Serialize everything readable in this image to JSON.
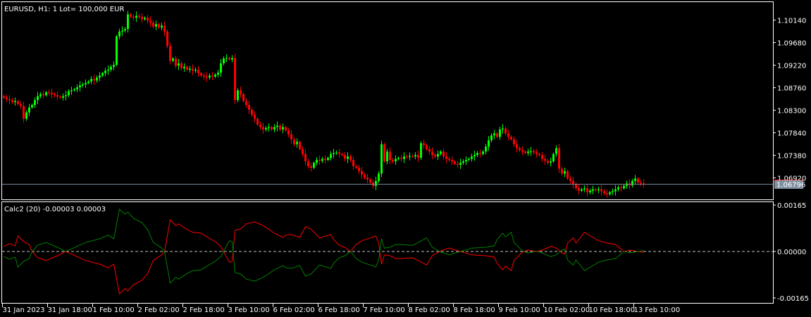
{
  "window": {
    "symbol_label": "EURUSD, H1:  1 Lot= 100,000 EUR"
  },
  "colors": {
    "bull": "#00ff00",
    "bear": "#ff0000",
    "background": "#000000",
    "grid_text": "#ffffff",
    "bid_line": "#778899",
    "ask_line": "#ff0000",
    "indicator_red": "#ff0000",
    "indicator_green": "#008000",
    "zero_line": "#c0c0c0"
  },
  "price_axis": {
    "ticks": [
      "1.10140",
      "1.09680",
      "1.09220",
      "1.08760",
      "1.08300",
      "1.07840",
      "1.07380",
      "1.06920"
    ],
    "current_price": "1.06796"
  },
  "time_axis": {
    "labels": [
      "31 Jan 2023",
      "31 Jan 18:00",
      "1 Feb 10:00",
      "2 Feb 02:00",
      "2 Feb 18:00",
      "3 Feb 10:00",
      "6 Feb 02:00",
      "6 Feb 18:00",
      "7 Feb 10:00",
      "8 Feb 02:00",
      "8 Feb 18:00",
      "9 Feb 10:00",
      "10 Feb 02:00",
      "10 Feb 18:00",
      "13 Feb 10:00"
    ],
    "bars_per_label": 16
  },
  "indicator": {
    "label": "Calc2 (20) -0.00003 0.00003",
    "axis_ticks": [
      "0.00165",
      "0.00000",
      "-0.00165"
    ],
    "zero_level": "0.00000"
  },
  "chart_data": [
    {
      "type": "candlestick",
      "symbol": "EURUSD",
      "timeframe": "H1",
      "ylim": [
        1.0647,
        1.1056
      ],
      "first_open": 1.0858,
      "closes": [
        1.0855,
        1.0852,
        1.085,
        1.0846,
        1.0848,
        1.0842,
        1.0838,
        1.0812,
        1.0825,
        1.0835,
        1.084,
        1.085,
        1.0858,
        1.0862,
        1.086,
        1.0866,
        1.0865,
        1.0862,
        1.086,
        1.0857,
        1.0855,
        1.0858,
        1.086,
        1.0868,
        1.087,
        1.0872,
        1.0876,
        1.088,
        1.0882,
        1.0885,
        1.0888,
        1.0893,
        1.089,
        1.0896,
        1.09,
        1.0905,
        1.091,
        1.0912,
        1.0918,
        1.0922,
        1.098,
        1.099,
        1.0992,
        1.0995,
        1.1025,
        1.102,
        1.1018,
        1.1022,
        1.102,
        1.1015,
        1.1018,
        1.1012,
        1.1008,
        1.1,
        1.1005,
        1.0998,
        1.1002,
        1.099,
        1.096,
        1.093,
        1.0935,
        1.092,
        1.0925,
        1.0915,
        1.0918,
        1.0912,
        1.0914,
        1.091,
        1.0912,
        1.0905,
        1.09,
        1.0898,
        1.0896,
        1.09,
        1.0898,
        1.0902,
        1.0906,
        1.0925,
        1.0935,
        1.0936,
        1.0933,
        1.0936,
        1.085,
        1.087,
        1.0862,
        1.0848,
        1.084,
        1.083,
        1.082,
        1.0812,
        1.08,
        1.0795,
        1.079,
        1.0793,
        1.0795,
        1.079,
        1.0795,
        1.0798,
        1.079,
        1.0795,
        1.0788,
        1.078,
        1.077,
        1.076,
        1.0765,
        1.075,
        1.074,
        1.0725,
        1.0715,
        1.0712,
        1.0722,
        1.0728,
        1.0726,
        1.073,
        1.0728,
        1.0732,
        1.074,
        1.0742,
        1.0743,
        1.074,
        1.0738,
        1.073,
        1.0735,
        1.0728,
        1.0715,
        1.0712,
        1.0705,
        1.0698,
        1.0692,
        1.0688,
        1.0682,
        1.0675,
        1.0685,
        1.07,
        1.076,
        1.0725,
        1.0745,
        1.0728,
        1.0725,
        1.073,
        1.0732,
        1.073,
        1.0735,
        1.0734,
        1.0736,
        1.0735,
        1.0738,
        1.0732,
        1.0762,
        1.0758,
        1.075,
        1.0745,
        1.0738,
        1.0735,
        1.074,
        1.0745,
        1.0735,
        1.073,
        1.0728,
        1.0725,
        1.072,
        1.0718,
        1.0722,
        1.0725,
        1.0728,
        1.073,
        1.0735,
        1.0738,
        1.0742,
        1.074,
        1.0745,
        1.0755,
        1.0768,
        1.0778,
        1.0782,
        1.0775,
        1.079,
        1.0792,
        1.0782,
        1.0775,
        1.077,
        1.076,
        1.0752,
        1.0748,
        1.0745,
        1.0742,
        1.0745,
        1.0746,
        1.0743,
        1.074,
        1.0738,
        1.073,
        1.0726,
        1.0722,
        1.0725,
        1.074,
        1.0752,
        1.071,
        1.07,
        1.0705,
        1.069,
        1.0685,
        1.0678,
        1.067,
        1.0665,
        1.0668,
        1.067,
        1.0662,
        1.0665,
        1.0668,
        1.0666,
        1.0668,
        1.0664,
        1.066,
        1.0658,
        1.0662,
        1.0664,
        1.0668,
        1.0672,
        1.067,
        1.0675,
        1.068,
        1.0676,
        1.0685,
        1.069,
        1.0682,
        1.068,
        1.06796
      ]
    },
    {
      "type": "line",
      "title": "Calc2 (20)",
      "ylim": [
        -0.00165,
        0.00165
      ],
      "bars": [
        0,
        2,
        4,
        5,
        7,
        9,
        10,
        12,
        15,
        19,
        22,
        29,
        34,
        37,
        39,
        41,
        43,
        44,
        46,
        49,
        51,
        53,
        56,
        57,
        59,
        61,
        62,
        65,
        67,
        70,
        72,
        75,
        77,
        79,
        80,
        81,
        82,
        84,
        86,
        89,
        92,
        96,
        99,
        100,
        102,
        105,
        107,
        109,
        112,
        116,
        117,
        119,
        121,
        123,
        125,
        127,
        130,
        132,
        133,
        134,
        135,
        137,
        139,
        141,
        145,
        147,
        150,
        152,
        155,
        158,
        162,
        166,
        171,
        174,
        175,
        177,
        178,
        180,
        181,
        184,
        186,
        189,
        191,
        194,
        196,
        198,
        199,
        200,
        202,
        203,
        206,
        209,
        211,
        214,
        217,
        220,
        222,
        225,
        227
      ],
      "series": [
        {
          "color": "red",
          "values": [
            0.00018,
            0.00028,
            0.0002,
            0.00055,
            0.00035,
            0.00025,
            0,
            -0.00022,
            -0.00032,
            -0.00015,
            0,
            -0.00032,
            -0.00045,
            -0.00058,
            -0.00045,
            -0.0015,
            -0.00132,
            -0.0014,
            -0.00118,
            -0.00102,
            -0.00078,
            -0.00032,
            -0.00012,
            0,
            0.00112,
            0.00092,
            0.00098,
            0.00078,
            0.00068,
            0.00065,
            0.00052,
            0.00035,
            0.00018,
            -0.0002,
            -0.00038,
            -0.00035,
            0.00075,
            0.0008,
            0.00098,
            0.00105,
            0.00092,
            0.00065,
            0.0005,
            0.00058,
            0.0006,
            0.0005,
            0.00088,
            0.0008,
            0.00048,
            0.0006,
            0.00042,
            0.00022,
            0.00015,
            0,
            0.00025,
            0.00038,
            0.00048,
            0.00055,
            0.0003,
            -0.00045,
            -0.00012,
            -0.00015,
            -0.00025,
            -0.00025,
            -0.00022,
            -0.00032,
            -0.00048,
            -0.00015,
            2e-05,
            0.00012,
            0,
            -0.00012,
            -0.00015,
            -0.0002,
            -0.00042,
            -0.00065,
            -0.00052,
            -0.00068,
            -0.00032,
            -2e-05,
            5e-05,
            0,
            5e-05,
            0.00018,
            0.00012,
            -5e-05,
            -8e-05,
            0.0003,
            0.00048,
            0.0003,
            0.00068,
            0.0005,
            0.00038,
            0.0003,
            0.00025,
            0,
            5e-05,
            0,
            -3e-05
          ]
        },
        {
          "color": "green",
          "values": [
            -0.00018,
            -0.00028,
            -0.0002,
            -0.00055,
            -0.00035,
            -0.00025,
            0,
            0.00022,
            0.00032,
            0.00015,
            0,
            0.00032,
            0.00045,
            0.00058,
            0.00045,
            0.0015,
            0.00132,
            0.0014,
            0.00118,
            0.00102,
            0.00078,
            0.00032,
            0.00012,
            0,
            -0.00112,
            -0.00092,
            -0.00098,
            -0.00078,
            -0.00068,
            -0.00065,
            -0.00052,
            -0.00035,
            -0.00018,
            0.0002,
            0.00038,
            0.00035,
            -0.00075,
            -0.0008,
            -0.00098,
            -0.00105,
            -0.00092,
            -0.00065,
            -0.0005,
            -0.00058,
            -0.0006,
            -0.0005,
            -0.00088,
            -0.0008,
            -0.00048,
            -0.0006,
            -0.00042,
            -0.00022,
            -0.00015,
            0,
            -0.00025,
            -0.00038,
            -0.00048,
            -0.00055,
            -0.0003,
            0.00045,
            0.00012,
            0.00015,
            0.00025,
            0.00025,
            0.00022,
            0.00032,
            0.00048,
            0.00015,
            -2e-05,
            -0.00012,
            0,
            0.00012,
            0.00015,
            0.0002,
            0.00042,
            0.00065,
            0.00052,
            0.00068,
            0.00032,
            2e-05,
            -5e-05,
            0,
            -5e-05,
            -0.00018,
            -0.00012,
            5e-05,
            8e-05,
            -0.0003,
            -0.00048,
            -0.0003,
            -0.00068,
            -0.0005,
            -0.00038,
            -0.0003,
            -0.00025,
            0,
            -5e-05,
            0,
            3e-05
          ]
        }
      ]
    }
  ]
}
